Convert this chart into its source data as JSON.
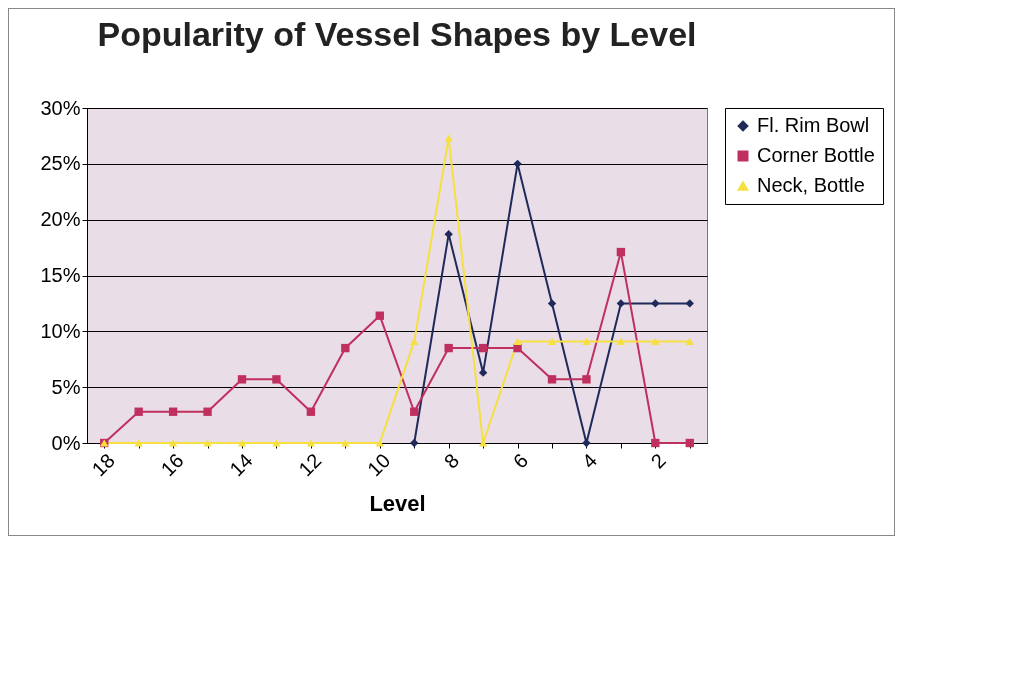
{
  "chart_data": {
    "type": "line",
    "title": "Popularity of Vessel Shapes by Level",
    "xlabel": "Level",
    "categories": [
      "18",
      null,
      "16",
      null,
      "14",
      null,
      "12",
      null,
      "10",
      null,
      "8",
      null,
      "6",
      null,
      "4",
      null,
      "2",
      null
    ],
    "series": [
      {
        "name": "Fl. Rim Bowl",
        "color": "#1f2a5a",
        "marker": "diamond",
        "values": [
          null,
          null,
          null,
          null,
          null,
          null,
          null,
          null,
          null,
          0,
          18.7,
          6.3,
          25,
          12.5,
          0,
          12.5,
          12.5,
          12.5
        ]
      },
      {
        "name": "Corner Bottle",
        "color": "#c0305f",
        "marker": "square",
        "values": [
          0,
          2.8,
          2.8,
          2.8,
          5.7,
          5.7,
          2.8,
          8.5,
          11.4,
          2.8,
          8.5,
          8.5,
          8.5,
          5.7,
          5.7,
          17.1,
          0,
          0
        ]
      },
      {
        "name": "Neck, Bottle",
        "color": "#f5e040",
        "marker": "triangle",
        "values": [
          0,
          0,
          0,
          0,
          0,
          0,
          0,
          0,
          0,
          9.1,
          27.3,
          0,
          9.1,
          9.1,
          9.1,
          9.1,
          9.1,
          9.1
        ]
      }
    ],
    "ylim": [
      0,
      30
    ],
    "yticks": [
      {
        "value": 0,
        "label": "0%"
      },
      {
        "value": 5,
        "label": "5%"
      },
      {
        "value": 10,
        "label": "10%"
      },
      {
        "value": 15,
        "label": "15%"
      },
      {
        "value": 20,
        "label": "20%"
      },
      {
        "value": 25,
        "label": "25%"
      },
      {
        "value": 30,
        "label": "30%"
      }
    ],
    "grid": "y",
    "legend": "right"
  }
}
